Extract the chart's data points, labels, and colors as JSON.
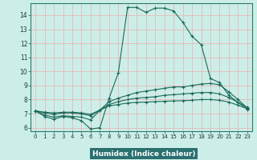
{
  "xlabel": "Humidex (Indice chaleur)",
  "bg_color": "#cceee8",
  "plot_bg_color": "#cceee8",
  "xlabel_bg": "#2a7a6a",
  "line_color": "#1a6a5a",
  "grid_color": "#e8b8b8",
  "xlim": [
    -0.5,
    23.5
  ],
  "ylim": [
    5.75,
    14.85
  ],
  "xticks": [
    0,
    1,
    2,
    3,
    4,
    5,
    6,
    7,
    8,
    9,
    10,
    11,
    12,
    13,
    14,
    15,
    16,
    17,
    18,
    19,
    20,
    21,
    22,
    23
  ],
  "yticks": [
    6,
    7,
    8,
    9,
    10,
    11,
    12,
    13,
    14
  ],
  "series": [
    {
      "x": [
        0,
        1,
        2,
        3,
        4,
        5,
        6,
        7,
        8,
        9,
        10,
        11,
        12,
        13,
        14,
        15,
        16,
        17,
        18,
        19,
        20,
        21,
        22,
        23
      ],
      "y": [
        7.2,
        6.8,
        6.6,
        6.8,
        6.7,
        6.5,
        5.9,
        6.0,
        8.1,
        9.9,
        14.55,
        14.55,
        14.2,
        14.5,
        14.5,
        14.3,
        13.5,
        12.5,
        11.9,
        9.5,
        9.2,
        8.3,
        7.8,
        7.3
      ]
    },
    {
      "x": [
        0,
        1,
        2,
        3,
        4,
        5,
        6,
        7,
        8,
        9,
        10,
        11,
        12,
        13,
        14,
        15,
        16,
        17,
        18,
        19,
        20,
        21,
        22,
        23
      ],
      "y": [
        7.2,
        6.9,
        6.75,
        6.85,
        6.8,
        6.75,
        6.55,
        7.25,
        7.85,
        8.1,
        8.3,
        8.5,
        8.6,
        8.7,
        8.8,
        8.9,
        8.9,
        9.0,
        9.1,
        9.15,
        9.05,
        8.55,
        8.0,
        7.4
      ]
    },
    {
      "x": [
        0,
        1,
        2,
        3,
        4,
        5,
        6,
        7,
        8,
        9,
        10,
        11,
        12,
        13,
        14,
        15,
        16,
        17,
        18,
        19,
        20,
        21,
        22,
        23
      ],
      "y": [
        7.2,
        7.05,
        6.95,
        7.05,
        7.05,
        6.98,
        6.85,
        7.25,
        7.65,
        7.85,
        8.0,
        8.1,
        8.15,
        8.2,
        8.3,
        8.35,
        8.4,
        8.45,
        8.5,
        8.5,
        8.4,
        8.15,
        7.8,
        7.45
      ]
    },
    {
      "x": [
        0,
        1,
        2,
        3,
        4,
        5,
        6,
        7,
        8,
        9,
        10,
        11,
        12,
        13,
        14,
        15,
        16,
        17,
        18,
        19,
        20,
        21,
        22,
        23
      ],
      "y": [
        7.2,
        7.1,
        7.05,
        7.1,
        7.1,
        7.05,
        6.95,
        7.25,
        7.55,
        7.65,
        7.75,
        7.8,
        7.82,
        7.85,
        7.88,
        7.9,
        7.92,
        7.95,
        8.0,
        8.0,
        7.95,
        7.82,
        7.6,
        7.35
      ]
    }
  ]
}
